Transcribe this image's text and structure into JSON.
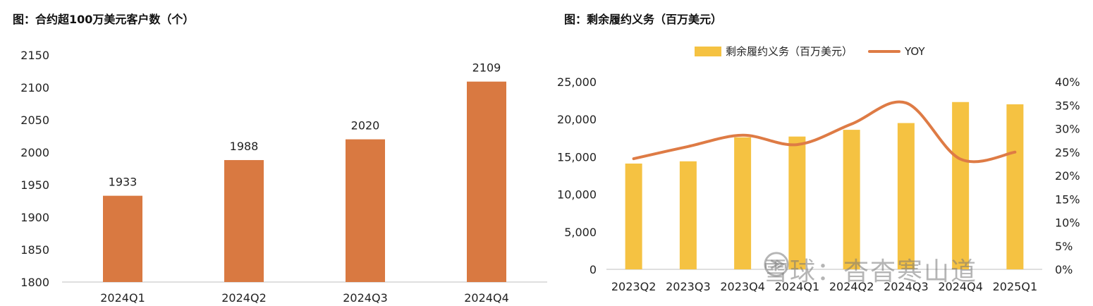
{
  "charts": [
    {
      "title": "图：合约超100万美元客户数（个）"
    },
    {
      "title": "图：剩余履约义务（百万美元）"
    }
  ],
  "watermark": {
    "text": "雪球：杳杳寒山道"
  },
  "colors": {
    "orange": "#d97941",
    "yellow": "#f5c242",
    "line": "#de7b45",
    "axis": "#bfbfbf",
    "text": "#222222"
  },
  "chart_data": [
    {
      "type": "bar",
      "title": "图：合约超100万美元客户数（个）",
      "categories": [
        "2024Q1",
        "2024Q2",
        "2024Q3",
        "2024Q4"
      ],
      "values": [
        1933,
        1988,
        2020,
        2109
      ],
      "data_labels": [
        "1933",
        "1988",
        "2020",
        "2109"
      ],
      "ylim": [
        1800,
        2150
      ],
      "yticks": [
        "1800",
        "1850",
        "1900",
        "1950",
        "2000",
        "2050",
        "2100",
        "2150"
      ],
      "color": "#d97941",
      "grid": false,
      "legend": "none"
    },
    {
      "type": "bar+line",
      "title": "图：剩余履约义务（百万美元）",
      "categories": [
        "2023Q2",
        "2023Q3",
        "2023Q4",
        "2024Q1",
        "2024Q2",
        "2024Q3",
        "2024Q4",
        "2025Q1"
      ],
      "series": [
        {
          "name": "剩余履约义务（百万美元）",
          "type": "bar",
          "axis": "left",
          "color": "#f5c242",
          "values": [
            14100,
            14400,
            17600,
            17700,
            18600,
            19500,
            22300,
            22000
          ]
        },
        {
          "name": "YOY",
          "type": "line",
          "axis": "right",
          "color": "#de7b45",
          "values": [
            0.236,
            0.262,
            0.286,
            0.266,
            0.31,
            0.355,
            0.235,
            0.25
          ]
        }
      ],
      "ylim_left": [
        0,
        25000
      ],
      "yticks_left": [
        "0",
        "5,000",
        "10,000",
        "15,000",
        "20,000",
        "25,000"
      ],
      "ylim_right": [
        0,
        0.4
      ],
      "yticks_right": [
        "0%",
        "5%",
        "10%",
        "15%",
        "20%",
        "25%",
        "30%",
        "35%",
        "40%"
      ],
      "grid": false,
      "legend": "top"
    }
  ]
}
